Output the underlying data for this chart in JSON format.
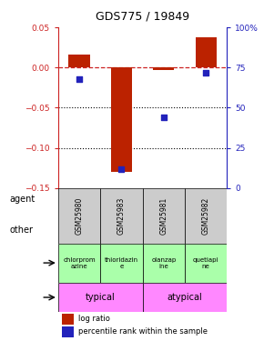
{
  "title": "GDS775 / 19849",
  "samples": [
    "GSM25980",
    "GSM25983",
    "GSM25981",
    "GSM25982"
  ],
  "log_ratio": [
    0.016,
    -0.13,
    -0.003,
    0.038
  ],
  "percentile_rank": [
    0.68,
    0.12,
    0.44,
    0.72
  ],
  "ylim_left": [
    -0.15,
    0.05
  ],
  "ylim_right": [
    0.0,
    1.0
  ],
  "yticks_left": [
    -0.15,
    -0.1,
    -0.05,
    0.0,
    0.05
  ],
  "yticks_right_vals": [
    0,
    0.25,
    0.5,
    0.75,
    1.0
  ],
  "yticks_right_labels": [
    "0",
    "25",
    "50",
    "75",
    "100%"
  ],
  "agent_labels": [
    "chlorprom\nazine",
    "thioridazin\ne",
    "olanzap\nine",
    "quetiapi\nne"
  ],
  "agent_color": "#aaffaa",
  "typical_color": "#ff88ff",
  "typical_label": "typical",
  "atypical_label": "atypical",
  "agent_row_label": "agent",
  "other_row_label": "other",
  "bar_color": "#bb2200",
  "dot_color": "#2222bb",
  "hline_color": "#cc2222",
  "dotline_color": "#000000",
  "left_axis_color": "#cc2222",
  "right_axis_color": "#2222bb",
  "bg_color": "#ffffff",
  "tick_area_color": "#cccccc",
  "bar_width": 0.5
}
